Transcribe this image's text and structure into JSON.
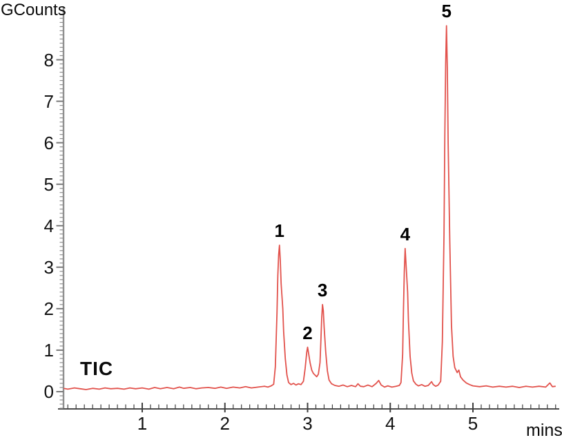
{
  "chart_data": {
    "type": "line",
    "title": "",
    "ylabel": "GCounts",
    "xlabel": "mins",
    "trace_label": "TIC",
    "grid": false,
    "legend": "none",
    "xlim": [
      0,
      6.02
    ],
    "ylim": [
      -0.42,
      9.27
    ],
    "x_major_ticks": [
      1,
      2,
      3,
      4,
      5
    ],
    "y_major_ticks": [
      0,
      1,
      2,
      3,
      4,
      5,
      6,
      7,
      8
    ],
    "x_minor_step": 0.1,
    "y_minor_step": 0.1,
    "colors": {
      "trace": "#e2524c",
      "y_axis": "#909090",
      "x_axis": "#4a4a4a",
      "y_tick": "#8d8d8d",
      "x_tick": "#3f3f3f",
      "text": "#0a0a0a"
    },
    "peaks": [
      {
        "label": "1",
        "time_min": 2.66,
        "height_gcounts": 3.53
      },
      {
        "label": "2",
        "time_min": 3.0,
        "height_gcounts": 1.07
      },
      {
        "label": "3",
        "time_min": 3.18,
        "height_gcounts": 2.1
      },
      {
        "label": "4",
        "time_min": 4.18,
        "height_gcounts": 3.45
      },
      {
        "label": "5",
        "time_min": 4.68,
        "height_gcounts": 8.82
      }
    ],
    "trace": [
      [
        0.05,
        0.08
      ],
      [
        0.1,
        0.06
      ],
      [
        0.18,
        0.09
      ],
      [
        0.25,
        0.07
      ],
      [
        0.32,
        0.05
      ],
      [
        0.4,
        0.08
      ],
      [
        0.48,
        0.06
      ],
      [
        0.55,
        0.09
      ],
      [
        0.62,
        0.07
      ],
      [
        0.7,
        0.08
      ],
      [
        0.78,
        0.06
      ],
      [
        0.85,
        0.09
      ],
      [
        0.92,
        0.07
      ],
      [
        1.0,
        0.09
      ],
      [
        1.08,
        0.06
      ],
      [
        1.15,
        0.1
      ],
      [
        1.22,
        0.07
      ],
      [
        1.3,
        0.1
      ],
      [
        1.38,
        0.07
      ],
      [
        1.45,
        0.11
      ],
      [
        1.5,
        0.08
      ],
      [
        1.58,
        0.1
      ],
      [
        1.65,
        0.07
      ],
      [
        1.72,
        0.09
      ],
      [
        1.8,
        0.1
      ],
      [
        1.88,
        0.08
      ],
      [
        1.95,
        0.11
      ],
      [
        2.02,
        0.08
      ],
      [
        2.1,
        0.11
      ],
      [
        2.18,
        0.09
      ],
      [
        2.25,
        0.12
      ],
      [
        2.32,
        0.09
      ],
      [
        2.4,
        0.11
      ],
      [
        2.48,
        0.13
      ],
      [
        2.52,
        0.11
      ],
      [
        2.56,
        0.14
      ],
      [
        2.59,
        0.18
      ],
      [
        2.61,
        0.6
      ],
      [
        2.63,
        1.9
      ],
      [
        2.64,
        2.8
      ],
      [
        2.65,
        3.3
      ],
      [
        2.66,
        3.53
      ],
      [
        2.67,
        3.15
      ],
      [
        2.68,
        2.6
      ],
      [
        2.7,
        2.0
      ],
      [
        2.71,
        1.45
      ],
      [
        2.73,
        0.8
      ],
      [
        2.75,
        0.4
      ],
      [
        2.77,
        0.22
      ],
      [
        2.8,
        0.17
      ],
      [
        2.83,
        0.2
      ],
      [
        2.86,
        0.16
      ],
      [
        2.89,
        0.19
      ],
      [
        2.92,
        0.17
      ],
      [
        2.95,
        0.25
      ],
      [
        2.97,
        0.55
      ],
      [
        2.99,
        0.95
      ],
      [
        3.0,
        1.07
      ],
      [
        3.01,
        0.95
      ],
      [
        3.03,
        0.7
      ],
      [
        3.05,
        0.52
      ],
      [
        3.07,
        0.44
      ],
      [
        3.09,
        0.4
      ],
      [
        3.11,
        0.36
      ],
      [
        3.13,
        0.42
      ],
      [
        3.15,
        0.7
      ],
      [
        3.16,
        1.2
      ],
      [
        3.17,
        1.75
      ],
      [
        3.18,
        2.1
      ],
      [
        3.19,
        1.95
      ],
      [
        3.2,
        1.55
      ],
      [
        3.22,
        0.95
      ],
      [
        3.24,
        0.5
      ],
      [
        3.26,
        0.28
      ],
      [
        3.29,
        0.19
      ],
      [
        3.33,
        0.15
      ],
      [
        3.38,
        0.13
      ],
      [
        3.43,
        0.16
      ],
      [
        3.48,
        0.12
      ],
      [
        3.53,
        0.15
      ],
      [
        3.58,
        0.12
      ],
      [
        3.61,
        0.19
      ],
      [
        3.64,
        0.13
      ],
      [
        3.68,
        0.12
      ],
      [
        3.73,
        0.16
      ],
      [
        3.78,
        0.12
      ],
      [
        3.83,
        0.2
      ],
      [
        3.86,
        0.27
      ],
      [
        3.89,
        0.16
      ],
      [
        3.93,
        0.11
      ],
      [
        3.97,
        0.14
      ],
      [
        4.02,
        0.11
      ],
      [
        4.07,
        0.13
      ],
      [
        4.11,
        0.15
      ],
      [
        4.13,
        0.22
      ],
      [
        4.15,
        0.9
      ],
      [
        4.16,
        2.0
      ],
      [
        4.17,
        2.9
      ],
      [
        4.18,
        3.45
      ],
      [
        4.19,
        3.1
      ],
      [
        4.21,
        2.4
      ],
      [
        4.22,
        1.7
      ],
      [
        4.24,
        0.85
      ],
      [
        4.26,
        0.45
      ],
      [
        4.28,
        0.26
      ],
      [
        4.31,
        0.18
      ],
      [
        4.34,
        0.14
      ],
      [
        4.38,
        0.17
      ],
      [
        4.42,
        0.13
      ],
      [
        4.46,
        0.15
      ],
      [
        4.5,
        0.24
      ],
      [
        4.52,
        0.17
      ],
      [
        4.55,
        0.13
      ],
      [
        4.58,
        0.16
      ],
      [
        4.61,
        0.25
      ],
      [
        4.63,
        1.2
      ],
      [
        4.65,
        3.8
      ],
      [
        4.66,
        6.2
      ],
      [
        4.67,
        7.9
      ],
      [
        4.68,
        8.82
      ],
      [
        4.69,
        7.8
      ],
      [
        4.7,
        6.0
      ],
      [
        4.72,
        3.6
      ],
      [
        4.74,
        1.6
      ],
      [
        4.76,
        0.85
      ],
      [
        4.78,
        0.58
      ],
      [
        4.81,
        0.46
      ],
      [
        4.83,
        0.52
      ],
      [
        4.85,
        0.36
      ],
      [
        4.88,
        0.28
      ],
      [
        4.92,
        0.21
      ],
      [
        4.96,
        0.17
      ],
      [
        5.0,
        0.14
      ],
      [
        5.08,
        0.12
      ],
      [
        5.16,
        0.14
      ],
      [
        5.24,
        0.11
      ],
      [
        5.32,
        0.13
      ],
      [
        5.4,
        0.11
      ],
      [
        5.48,
        0.13
      ],
      [
        5.56,
        0.1
      ],
      [
        5.64,
        0.13
      ],
      [
        5.72,
        0.11
      ],
      [
        5.8,
        0.13
      ],
      [
        5.88,
        0.11
      ],
      [
        5.93,
        0.21
      ],
      [
        5.96,
        0.12
      ],
      [
        6.0,
        0.13
      ]
    ]
  }
}
